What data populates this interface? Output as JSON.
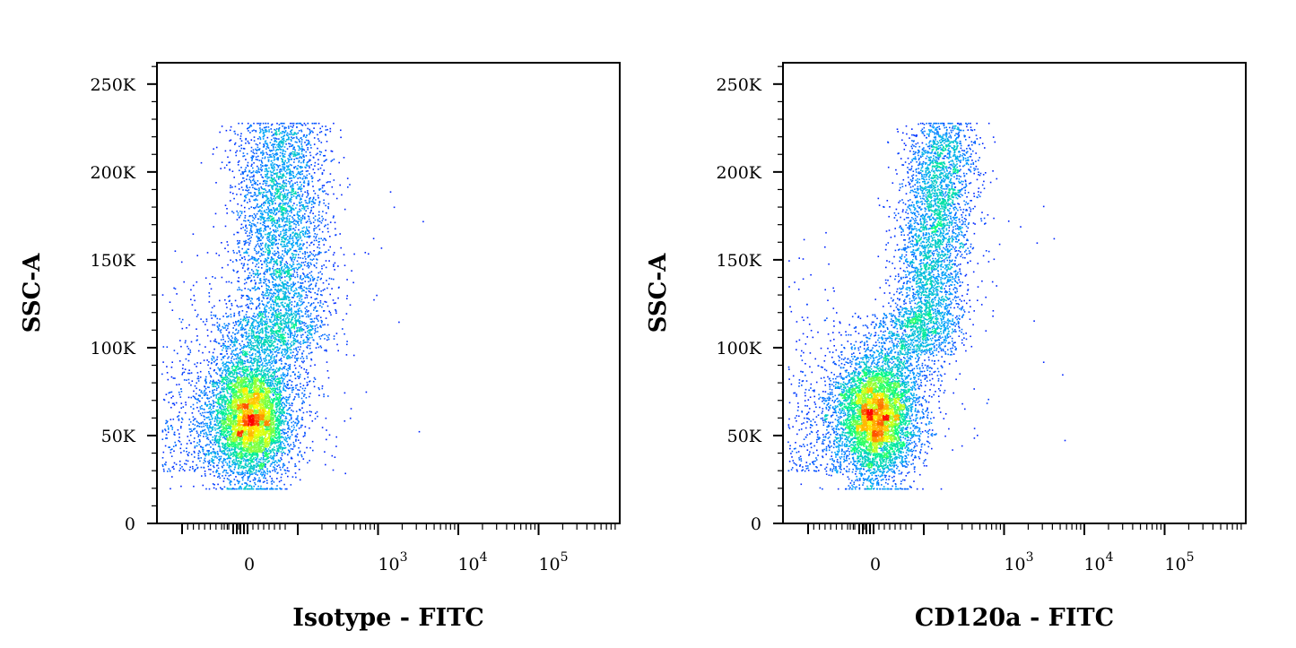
{
  "chart_data": [
    {
      "type": "scatter",
      "style": "density",
      "xlabel": "Isotype - FITC",
      "ylabel": "SSC-A",
      "x_scale": "biexponential",
      "ylim": [
        0,
        262144
      ],
      "xticks": [
        {
          "value": 0,
          "base": "0",
          "exp": ""
        },
        {
          "value": 1000,
          "base": "10",
          "exp": "3"
        },
        {
          "value": 10000,
          "base": "10",
          "exp": "4"
        },
        {
          "value": 100000,
          "base": "10",
          "exp": "5"
        }
      ],
      "yticks": [
        {
          "value": 0,
          "label": "0"
        },
        {
          "value": 50000,
          "label": "50K"
        },
        {
          "value": 100000,
          "label": "100K"
        },
        {
          "value": 150000,
          "label": "150K"
        },
        {
          "value": 200000,
          "label": "200K"
        },
        {
          "value": 250000,
          "label": "250K"
        }
      ],
      "populations": [
        {
          "x_center": 0,
          "y_center": 60000,
          "share": 0.55
        },
        {
          "x_center": 150,
          "y_center": 160000,
          "share": 0.45
        }
      ],
      "colormap": [
        "#0000ff",
        "#00a0ff",
        "#00ff80",
        "#ffff00",
        "#ff0000"
      ]
    },
    {
      "type": "scatter",
      "style": "density",
      "xlabel": "CD120a - FITC",
      "ylabel": "SSC-A",
      "x_scale": "biexponential",
      "ylim": [
        0,
        262144
      ],
      "xticks": [
        {
          "value": 0,
          "base": "0",
          "exp": ""
        },
        {
          "value": 1000,
          "base": "10",
          "exp": "3"
        },
        {
          "value": 10000,
          "base": "10",
          "exp": "4"
        },
        {
          "value": 100000,
          "base": "10",
          "exp": "5"
        }
      ],
      "yticks": [
        {
          "value": 0,
          "label": "0"
        },
        {
          "value": 50000,
          "label": "50K"
        },
        {
          "value": 100000,
          "label": "100K"
        },
        {
          "value": 150000,
          "label": "150K"
        },
        {
          "value": 200000,
          "label": "200K"
        },
        {
          "value": 250000,
          "label": "250K"
        }
      ],
      "populations": [
        {
          "x_center": 0,
          "y_center": 60000,
          "share": 0.55
        },
        {
          "x_center": 250,
          "y_center": 160000,
          "share": 0.45
        }
      ],
      "colormap": [
        "#0000ff",
        "#00a0ff",
        "#00ff80",
        "#ffff00",
        "#ff0000"
      ]
    }
  ]
}
